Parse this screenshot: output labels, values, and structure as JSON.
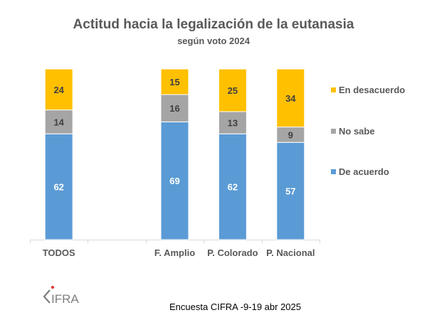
{
  "chart_data": {
    "type": "bar",
    "stacked": true,
    "title": "Actitud hacia la legalización de la eutanasia",
    "subtitle": "según voto 2024",
    "categories": [
      "TODOS",
      "",
      "F. Amplio",
      "P. Colorado",
      "P. Nacional"
    ],
    "series": [
      {
        "name": "De acuerdo",
        "color": "#5B9BD5",
        "label_color": "#FFFFFF",
        "values": [
          62,
          null,
          69,
          62,
          57
        ]
      },
      {
        "name": "No sabe",
        "color": "#A5A5A5",
        "label_color": "#404040",
        "values": [
          14,
          null,
          16,
          13,
          9
        ]
      },
      {
        "name": "En desacuerdo",
        "color": "#FFC000",
        "label_color": "#404040",
        "values": [
          24,
          null,
          15,
          25,
          34
        ]
      }
    ],
    "legend_order": [
      "En desacuerdo",
      "No sabe",
      "De acuerdo"
    ],
    "legend_position": "right",
    "ylim": [
      0,
      100
    ],
    "grid": false,
    "xlabel": "",
    "ylabel": ""
  },
  "footer": {
    "source": "Encuesta CIFRA -9-19 abr 2025",
    "logo_text": "CIFRA"
  }
}
